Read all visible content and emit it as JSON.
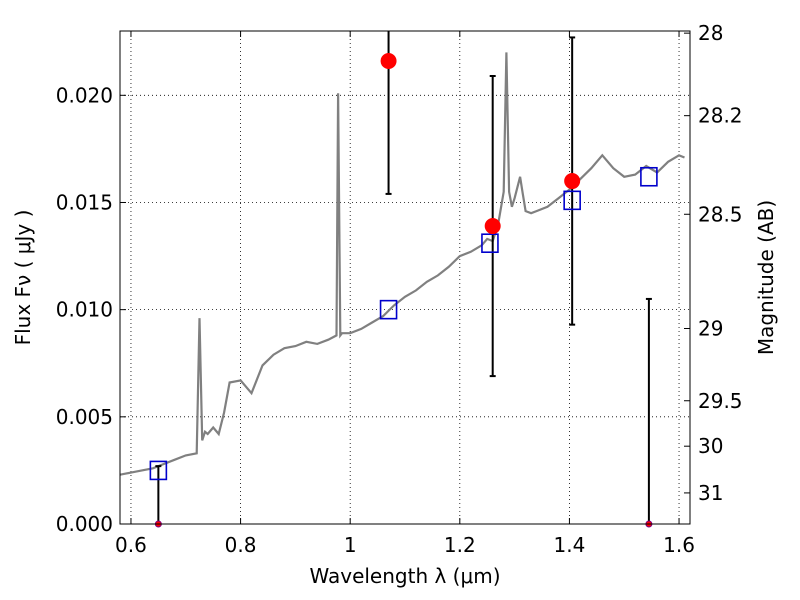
{
  "chart_data": {
    "type": "line",
    "title": "",
    "xlabel": "Wavelength  λ (μm)",
    "ylabel": "Flux  Fν  ( μJy )",
    "y2label": "Magnitude (AB)",
    "xlim": [
      0.58,
      1.62
    ],
    "ylim": [
      0.0,
      0.023
    ],
    "grid": true,
    "x_ticks": [
      0.6,
      0.8,
      1.0,
      1.2,
      1.4,
      1.6
    ],
    "x_tick_labels": [
      "0.6",
      "0.8",
      "1",
      "1.2",
      "1.4",
      "1.6"
    ],
    "y_ticks": [
      0.0,
      0.005,
      0.01,
      0.015,
      0.02
    ],
    "y_tick_labels": [
      "0.000",
      "0.005",
      "0.010",
      "0.015",
      "0.020"
    ],
    "y2_ticks": [
      {
        "label": "28",
        "flux": 0.0229
      },
      {
        "label": "28.2",
        "flux": 0.01905
      },
      {
        "label": "28.5",
        "flux": 0.01445
      },
      {
        "label": "29",
        "flux": 0.00912
      },
      {
        "label": "29.5",
        "flux": 0.00575
      },
      {
        "label": "30",
        "flux": 0.00363
      },
      {
        "label": "31",
        "flux": 0.00145
      }
    ],
    "series": [
      {
        "type": "line",
        "color": "#808080",
        "x": [
          0.58,
          0.6,
          0.62,
          0.64,
          0.66,
          0.68,
          0.7,
          0.72,
          0.725,
          0.73,
          0.735,
          0.74,
          0.75,
          0.76,
          0.77,
          0.78,
          0.8,
          0.82,
          0.84,
          0.86,
          0.88,
          0.9,
          0.92,
          0.94,
          0.96,
          0.975,
          0.978,
          0.982,
          0.985,
          1.0,
          1.02,
          1.04,
          1.06,
          1.08,
          1.1,
          1.12,
          1.14,
          1.16,
          1.18,
          1.2,
          1.22,
          1.24,
          1.25,
          1.26,
          1.27,
          1.28,
          1.285,
          1.29,
          1.295,
          1.3,
          1.31,
          1.315,
          1.32,
          1.33,
          1.34,
          1.36,
          1.38,
          1.4,
          1.42,
          1.44,
          1.46,
          1.48,
          1.5,
          1.52,
          1.54,
          1.56,
          1.58,
          1.6,
          1.61
        ],
        "y": [
          0.0023,
          0.0024,
          0.0025,
          0.0026,
          0.0028,
          0.003,
          0.0032,
          0.0033,
          0.0096,
          0.0039,
          0.0043,
          0.0042,
          0.0045,
          0.0042,
          0.0052,
          0.0066,
          0.0067,
          0.0061,
          0.0074,
          0.0079,
          0.0082,
          0.0083,
          0.0085,
          0.0084,
          0.0086,
          0.0088,
          0.0201,
          0.0088,
          0.0089,
          0.0089,
          0.0091,
          0.0094,
          0.0097,
          0.0102,
          0.0106,
          0.0109,
          0.0113,
          0.0116,
          0.012,
          0.0125,
          0.0127,
          0.013,
          0.0133,
          0.0132,
          0.014,
          0.0155,
          0.022,
          0.0155,
          0.0148,
          0.0152,
          0.0162,
          0.0154,
          0.0146,
          0.0145,
          0.0146,
          0.0148,
          0.0152,
          0.0156,
          0.0161,
          0.0166,
          0.0172,
          0.0166,
          0.0162,
          0.0163,
          0.0167,
          0.0164,
          0.0169,
          0.0172,
          0.0171
        ]
      },
      {
        "type": "scatter",
        "marker": "open-square",
        "color": "#0000cc",
        "x": [
          0.65,
          1.07,
          1.255,
          1.405,
          1.545
        ],
        "y": [
          0.0025,
          0.01,
          0.0131,
          0.0151,
          0.0162
        ]
      },
      {
        "type": "errorbar",
        "marker": "filled-circle",
        "color": "#ff0000",
        "x": [
          0.65,
          1.07,
          1.26,
          1.405,
          1.545
        ],
        "y": [
          0.0,
          0.0216,
          0.0139,
          0.016,
          0.0
        ],
        "yerr_low": [
          0.0,
          0.0154,
          0.0069,
          0.0093,
          0.0
        ],
        "yerr_high": [
          0.0027,
          0.0234,
          0.0209,
          0.0227,
          0.0105
        ]
      }
    ]
  }
}
